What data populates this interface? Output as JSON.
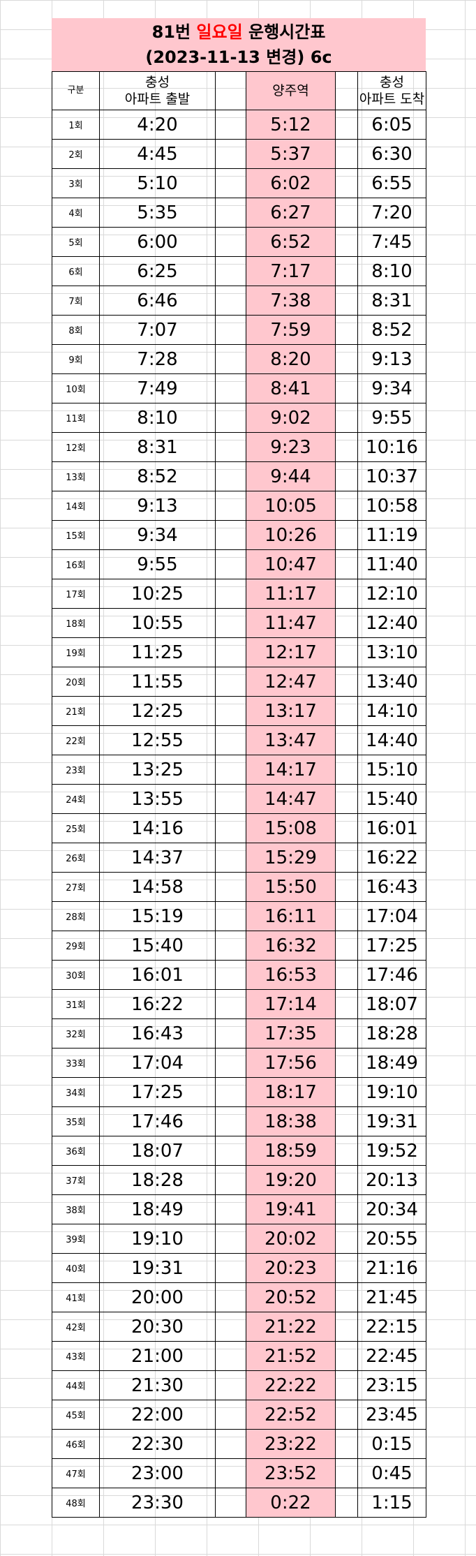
{
  "title": {
    "line1_prefix": "81번 ",
    "line1_highlight": "일요일",
    "line1_suffix": " 운행시간표",
    "line2": "(2023-11-13 변경) 6c"
  },
  "headers": {
    "gubun": "구분",
    "depart_l1": "충성",
    "depart_l2": "아파트 출발",
    "station": "양주역",
    "arrive_l1": "충성",
    "arrive_l2": "아파트 도착"
  },
  "rows": [
    {
      "n": "1회",
      "d": "4:20",
      "s": "5:12",
      "a": "6:05"
    },
    {
      "n": "2회",
      "d": "4:45",
      "s": "5:37",
      "a": "6:30"
    },
    {
      "n": "3회",
      "d": "5:10",
      "s": "6:02",
      "a": "6:55"
    },
    {
      "n": "4회",
      "d": "5:35",
      "s": "6:27",
      "a": "7:20"
    },
    {
      "n": "5회",
      "d": "6:00",
      "s": "6:52",
      "a": "7:45"
    },
    {
      "n": "6회",
      "d": "6:25",
      "s": "7:17",
      "a": "8:10"
    },
    {
      "n": "7회",
      "d": "6:46",
      "s": "7:38",
      "a": "8:31"
    },
    {
      "n": "8회",
      "d": "7:07",
      "s": "7:59",
      "a": "8:52"
    },
    {
      "n": "9회",
      "d": "7:28",
      "s": "8:20",
      "a": "9:13"
    },
    {
      "n": "10회",
      "d": "7:49",
      "s": "8:41",
      "a": "9:34"
    },
    {
      "n": "11회",
      "d": "8:10",
      "s": "9:02",
      "a": "9:55"
    },
    {
      "n": "12회",
      "d": "8:31",
      "s": "9:23",
      "a": "10:16"
    },
    {
      "n": "13회",
      "d": "8:52",
      "s": "9:44",
      "a": "10:37"
    },
    {
      "n": "14회",
      "d": "9:13",
      "s": "10:05",
      "a": "10:58"
    },
    {
      "n": "15회",
      "d": "9:34",
      "s": "10:26",
      "a": "11:19"
    },
    {
      "n": "16회",
      "d": "9:55",
      "s": "10:47",
      "a": "11:40"
    },
    {
      "n": "17회",
      "d": "10:25",
      "s": "11:17",
      "a": "12:10"
    },
    {
      "n": "18회",
      "d": "10:55",
      "s": "11:47",
      "a": "12:40"
    },
    {
      "n": "19회",
      "d": "11:25",
      "s": "12:17",
      "a": "13:10"
    },
    {
      "n": "20회",
      "d": "11:55",
      "s": "12:47",
      "a": "13:40"
    },
    {
      "n": "21회",
      "d": "12:25",
      "s": "13:17",
      "a": "14:10"
    },
    {
      "n": "22회",
      "d": "12:55",
      "s": "13:47",
      "a": "14:40"
    },
    {
      "n": "23회",
      "d": "13:25",
      "s": "14:17",
      "a": "15:10"
    },
    {
      "n": "24회",
      "d": "13:55",
      "s": "14:47",
      "a": "15:40"
    },
    {
      "n": "25회",
      "d": "14:16",
      "s": "15:08",
      "a": "16:01"
    },
    {
      "n": "26회",
      "d": "14:37",
      "s": "15:29",
      "a": "16:22"
    },
    {
      "n": "27회",
      "d": "14:58",
      "s": "15:50",
      "a": "16:43"
    },
    {
      "n": "28회",
      "d": "15:19",
      "s": "16:11",
      "a": "17:04"
    },
    {
      "n": "29회",
      "d": "15:40",
      "s": "16:32",
      "a": "17:25"
    },
    {
      "n": "30회",
      "d": "16:01",
      "s": "16:53",
      "a": "17:46"
    },
    {
      "n": "31회",
      "d": "16:22",
      "s": "17:14",
      "a": "18:07"
    },
    {
      "n": "32회",
      "d": "16:43",
      "s": "17:35",
      "a": "18:28"
    },
    {
      "n": "33회",
      "d": "17:04",
      "s": "17:56",
      "a": "18:49"
    },
    {
      "n": "34회",
      "d": "17:25",
      "s": "18:17",
      "a": "19:10"
    },
    {
      "n": "35회",
      "d": "17:46",
      "s": "18:38",
      "a": "19:31"
    },
    {
      "n": "36회",
      "d": "18:07",
      "s": "18:59",
      "a": "19:52"
    },
    {
      "n": "37회",
      "d": "18:28",
      "s": "19:20",
      "a": "20:13"
    },
    {
      "n": "38회",
      "d": "18:49",
      "s": "19:41",
      "a": "20:34"
    },
    {
      "n": "39회",
      "d": "19:10",
      "s": "20:02",
      "a": "20:55"
    },
    {
      "n": "40회",
      "d": "19:31",
      "s": "20:23",
      "a": "21:16"
    },
    {
      "n": "41회",
      "d": "20:00",
      "s": "20:52",
      "a": "21:45"
    },
    {
      "n": "42회",
      "d": "20:30",
      "s": "21:22",
      "a": "22:15"
    },
    {
      "n": "43회",
      "d": "21:00",
      "s": "21:52",
      "a": "22:45"
    },
    {
      "n": "44회",
      "d": "21:30",
      "s": "22:22",
      "a": "23:15"
    },
    {
      "n": "45회",
      "d": "22:00",
      "s": "22:52",
      "a": "23:45"
    },
    {
      "n": "46회",
      "d": "22:30",
      "s": "23:22",
      "a": "0:15"
    },
    {
      "n": "47회",
      "d": "23:00",
      "s": "23:52",
      "a": "0:45"
    },
    {
      "n": "48회",
      "d": "23:30",
      "s": "0:22",
      "a": "1:15"
    }
  ],
  "colors": {
    "highlight_bg": "#ffc7ce",
    "highlight_text": "#ff0000"
  }
}
